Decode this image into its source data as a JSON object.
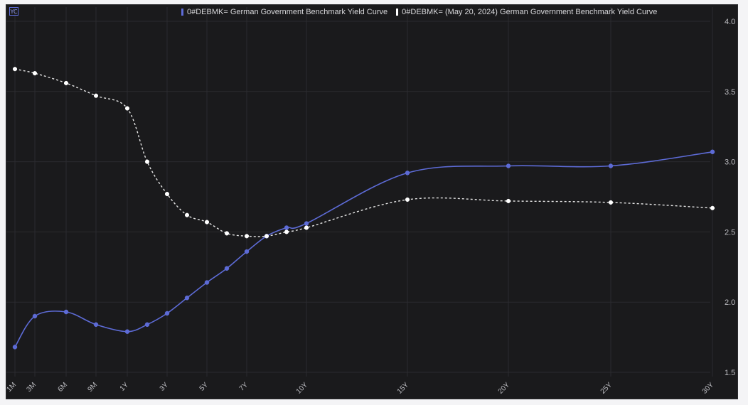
{
  "colors": {
    "background": "#1a1a1c",
    "grid": "#2b2b2f",
    "series_current": "#5d6bd6",
    "series_previous": "#e6e6e6"
  },
  "badge": {
    "label": "YC"
  },
  "chart_data": {
    "type": "line",
    "legend_position": "top-center",
    "grid": true,
    "x_tick_labels": [
      "1M",
      "3M",
      "6M",
      "9M",
      "1Y",
      "3Y",
      "5Y",
      "7Y",
      "10Y",
      "15Y",
      "20Y",
      "25Y",
      "30Y"
    ],
    "x_tick_years": [
      0.083,
      0.25,
      0.5,
      0.75,
      1,
      3,
      5,
      7,
      10,
      15,
      20,
      25,
      30
    ],
    "y_ticks": [
      "1.5",
      "2.0",
      "2.5",
      "3.0",
      "3.5",
      "4.0"
    ],
    "ylim": [
      1.5,
      4.0
    ],
    "series": [
      {
        "name": "0#DEBMK= German Government Benchmark Yield Curve",
        "style": "solid",
        "points": [
          {
            "x": 0.083,
            "y": 1.68
          },
          {
            "x": 0.25,
            "y": 1.9
          },
          {
            "x": 0.5,
            "y": 1.93
          },
          {
            "x": 0.75,
            "y": 1.84
          },
          {
            "x": 1,
            "y": 1.79
          },
          {
            "x": 2,
            "y": 1.84
          },
          {
            "x": 3,
            "y": 1.92
          },
          {
            "x": 4,
            "y": 2.03
          },
          {
            "x": 5,
            "y": 2.14
          },
          {
            "x": 6,
            "y": 2.24
          },
          {
            "x": 7,
            "y": 2.36
          },
          {
            "x": 8,
            "y": 2.47
          },
          {
            "x": 9,
            "y": 2.53
          },
          {
            "x": 10,
            "y": 2.56
          },
          {
            "x": 15,
            "y": 2.92
          },
          {
            "x": 20,
            "y": 2.97
          },
          {
            "x": 25,
            "y": 2.97
          },
          {
            "x": 30,
            "y": 3.07
          }
        ]
      },
      {
        "name": "0#DEBMK= (May 20, 2024) German Government Benchmark Yield Curve",
        "style": "dashed",
        "points": [
          {
            "x": 0.083,
            "y": 3.66
          },
          {
            "x": 0.25,
            "y": 3.63
          },
          {
            "x": 0.5,
            "y": 3.56
          },
          {
            "x": 0.75,
            "y": 3.47
          },
          {
            "x": 1,
            "y": 3.38
          },
          {
            "x": 2,
            "y": 3.0
          },
          {
            "x": 3,
            "y": 2.77
          },
          {
            "x": 4,
            "y": 2.62
          },
          {
            "x": 5,
            "y": 2.57
          },
          {
            "x": 6,
            "y": 2.49
          },
          {
            "x": 7,
            "y": 2.47
          },
          {
            "x": 8,
            "y": 2.47
          },
          {
            "x": 9,
            "y": 2.5
          },
          {
            "x": 10,
            "y": 2.53
          },
          {
            "x": 15,
            "y": 2.73
          },
          {
            "x": 20,
            "y": 2.72
          },
          {
            "x": 25,
            "y": 2.71
          },
          {
            "x": 30,
            "y": 2.67
          }
        ]
      }
    ]
  }
}
